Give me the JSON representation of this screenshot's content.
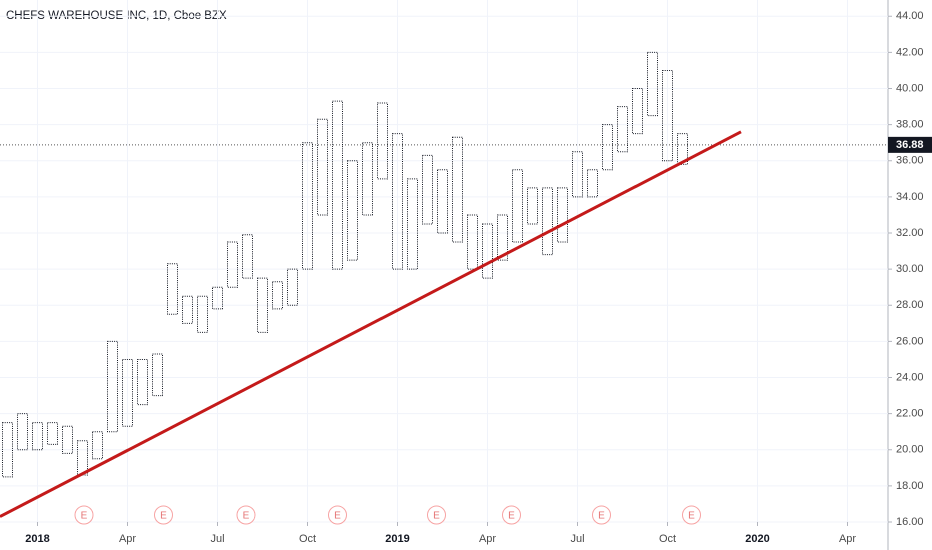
{
  "chart_data": {
    "type": "range_bar",
    "title": "CHEFS WAREHOUSE INC, 1D, Cboe BZX",
    "high": [
      21.5,
      22,
      21.5,
      21.5,
      21.3,
      20.5,
      21,
      26,
      25,
      25,
      25.3,
      30.3,
      28.5,
      28.5,
      29,
      31.5,
      31.9,
      29.5,
      29.3,
      30,
      37,
      38.3,
      39.3,
      36,
      37,
      39.2,
      37.5,
      35,
      36.3,
      35.5,
      37.3,
      33,
      32.5,
      33,
      35.5,
      34.5,
      34.5,
      34.5,
      36.5,
      35.5,
      38,
      39,
      40,
      42,
      41,
      37.5
    ],
    "low": [
      18.5,
      20,
      20,
      20.3,
      19.8,
      18.6,
      19.5,
      21,
      21.3,
      22.5,
      23,
      27.5,
      27,
      26.5,
      27.8,
      29,
      29.5,
      26.5,
      27.8,
      28,
      30,
      33,
      30,
      30.5,
      33,
      35,
      30,
      30,
      32.5,
      32,
      31.5,
      30,
      29.5,
      30.5,
      31.5,
      32.5,
      30.8,
      31.5,
      34,
      34,
      35.5,
      36.5,
      37.5,
      38.5,
      36,
      35.8
    ],
    "bar_color": "#131722",
    "xlim": [
      -0.5,
      58.7
    ],
    "xticks": [
      {
        "value": 2,
        "label": "2018"
      },
      {
        "value": 8,
        "label": "Apr"
      },
      {
        "value": 14,
        "label": "Jul"
      },
      {
        "value": 20,
        "label": "Oct"
      },
      {
        "value": 26,
        "label": "2019"
      },
      {
        "value": 32,
        "label": "Apr"
      },
      {
        "value": 38,
        "label": "Jul"
      },
      {
        "value": 44,
        "label": "Oct"
      },
      {
        "value": 50,
        "label": "2020"
      },
      {
        "value": 56,
        "label": "Apr"
      }
    ],
    "ylim": [
      16,
      44.9
    ],
    "yticks": [
      {
        "value": 16,
        "label": "16.00"
      },
      {
        "value": 18,
        "label": "18.00"
      },
      {
        "value": 20,
        "label": "20.00"
      },
      {
        "value": 22,
        "label": "22.00"
      },
      {
        "value": 24,
        "label": "24.00"
      },
      {
        "value": 26,
        "label": "26.00"
      },
      {
        "value": 28,
        "label": "28.00"
      },
      {
        "value": 30,
        "label": "30.00"
      },
      {
        "value": 32,
        "label": "32.00"
      },
      {
        "value": 34,
        "label": "34.00"
      },
      {
        "value": 36,
        "label": "36.00"
      },
      {
        "value": 38,
        "label": "38.00"
      },
      {
        "value": 40,
        "label": "40.00"
      },
      {
        "value": 42,
        "label": "42.00"
      },
      {
        "value": 44,
        "label": "44.00"
      }
    ],
    "grid": true,
    "last_price": 36.88,
    "trendline": {
      "color": "#c41a1a",
      "x": [
        -0.5,
        48.9
      ],
      "values": [
        16.3,
        37.6
      ]
    },
    "earnings": [
      {
        "x": 5.1,
        "label": "E"
      },
      {
        "x": 10.4,
        "label": "E"
      },
      {
        "x": 15.9,
        "label": "E"
      },
      {
        "x": 22,
        "label": "E"
      },
      {
        "x": 28.6,
        "label": "E"
      },
      {
        "x": 33.6,
        "label": "E"
      },
      {
        "x": 39.6,
        "label": "E"
      },
      {
        "x": 45.6,
        "label": "E"
      }
    ]
  }
}
